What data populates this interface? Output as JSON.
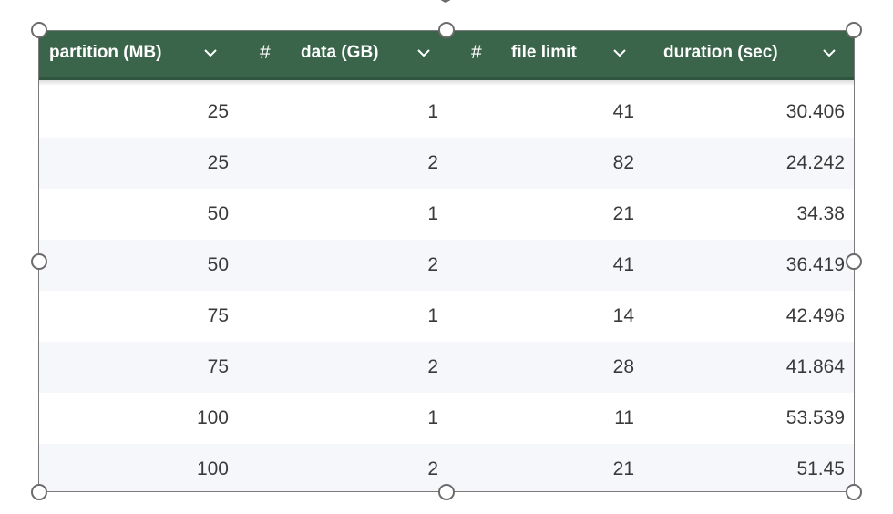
{
  "table": {
    "columns": [
      {
        "label": "partition (MB)",
        "type_icon": "none",
        "sort_icon": "chevron-down-icon"
      },
      {
        "label": "data (GB)",
        "type_icon": "hash-icon",
        "sort_icon": "chevron-down-icon"
      },
      {
        "label": "file limit",
        "type_icon": "hash-icon",
        "sort_icon": "chevron-down-icon"
      },
      {
        "label": "duration (sec)",
        "type_icon": "none",
        "sort_icon": "chevron-down-icon"
      }
    ],
    "hash_symbol": "#",
    "rows": [
      [
        "25",
        "1",
        "41",
        "30.406"
      ],
      [
        "25",
        "2",
        "82",
        "24.242"
      ],
      [
        "50",
        "1",
        "21",
        "34.38"
      ],
      [
        "50",
        "2",
        "41",
        "36.419"
      ],
      [
        "75",
        "1",
        "14",
        "42.496"
      ],
      [
        "75",
        "2",
        "28",
        "41.864"
      ],
      [
        "100",
        "1",
        "11",
        "53.539"
      ],
      [
        "100",
        "2",
        "21",
        "51.45"
      ]
    ]
  },
  "colors": {
    "header_bg": "#3b654b",
    "header_text": "#ffffff",
    "row_alt_bg": "#f6f7fb",
    "cell_text": "#3a3a3a",
    "frame": "#7a7a7a"
  }
}
